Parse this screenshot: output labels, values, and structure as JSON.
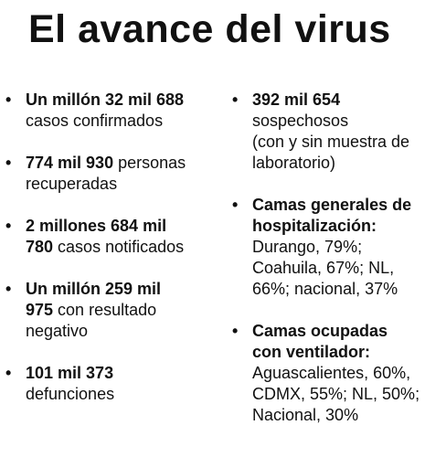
{
  "title": "El avance del virus",
  "bullet": "•",
  "left": [
    {
      "b1": "Un millón 32 mil 688",
      "r1": "",
      "r2": "casos confirmados"
    },
    {
      "b1": "774 mil 930",
      "r1": " personas",
      "r2": "recuperadas"
    },
    {
      "b1": "2 millones 684 mil",
      "b2": "780",
      "r2": " casos notificados"
    },
    {
      "b1": "Un millón 259 mil",
      "b2": "975",
      "r2": " con resultado",
      "r3": "negativo"
    },
    {
      "b1": "101 mil 373",
      "r2": "defunciones"
    }
  ],
  "right": {
    "sospechosos": {
      "b1": "392 mil 654",
      "l2": "sospechosos",
      "l3": "(con y sin muestra de",
      "l4": "laboratorio)"
    },
    "camas_generales": {
      "h1": "Camas generales de",
      "h2": "hospitalización:",
      "l3": "Durango, 79%;",
      "l4": "Coahuila, 67%; NL,",
      "l5": "66%; nacional, 37%"
    },
    "camas_ventilador": {
      "h1": "Camas ocupadas",
      "h2": "con ventilador:",
      "l3": "Aguascalientes, 60%,",
      "l4": "CDMX, 55%; NL, 50%;",
      "l5": "Nacional, 30%"
    }
  }
}
